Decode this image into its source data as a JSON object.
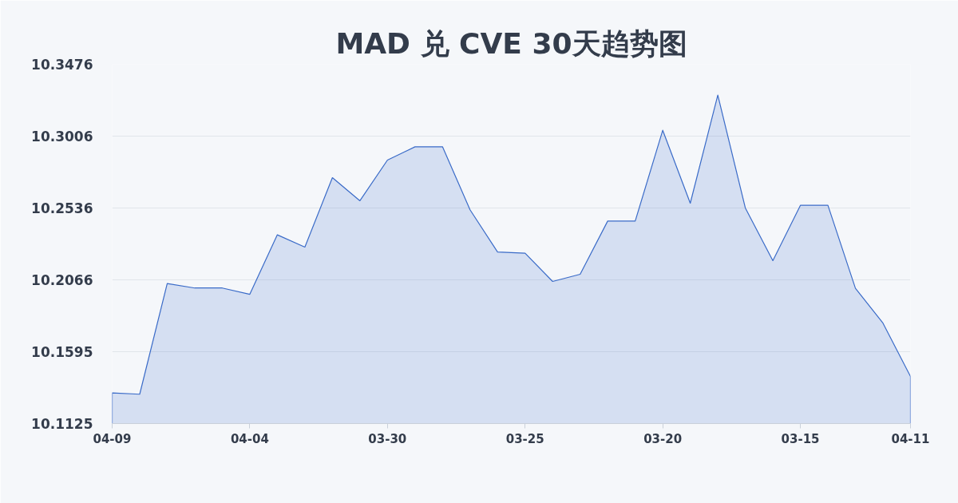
{
  "chart_data": {
    "type": "area",
    "title": "MAD 兑 CVE 30天趋势图",
    "categories": [
      "04-09",
      null,
      null,
      null,
      null,
      "04-04",
      null,
      null,
      null,
      null,
      "03-30",
      null,
      null,
      null,
      null,
      "03-25",
      null,
      null,
      null,
      null,
      "03-20",
      null,
      null,
      null,
      null,
      "03-15",
      null,
      null,
      null,
      "04-11"
    ],
    "series": [
      {
        "color": "#3a6bc8",
        "values": [
          10.1325,
          10.1317,
          10.2041,
          10.2012,
          10.2012,
          10.1971,
          10.236,
          10.228,
          10.2734,
          10.2583,
          10.2849,
          10.2936,
          10.2936,
          10.2524,
          10.2248,
          10.224,
          10.2055,
          10.2102,
          10.245,
          10.245,
          10.3044,
          10.2567,
          10.3274,
          10.2536,
          10.2191,
          10.2553,
          10.2553,
          10.201,
          10.1782,
          10.1433
        ]
      }
    ],
    "ylim": [
      10.1125,
      10.3476
    ],
    "yticks": [
      10.1125,
      10.1595,
      10.2066,
      10.2536,
      10.3006,
      10.3476
    ],
    "grid": "y"
  }
}
